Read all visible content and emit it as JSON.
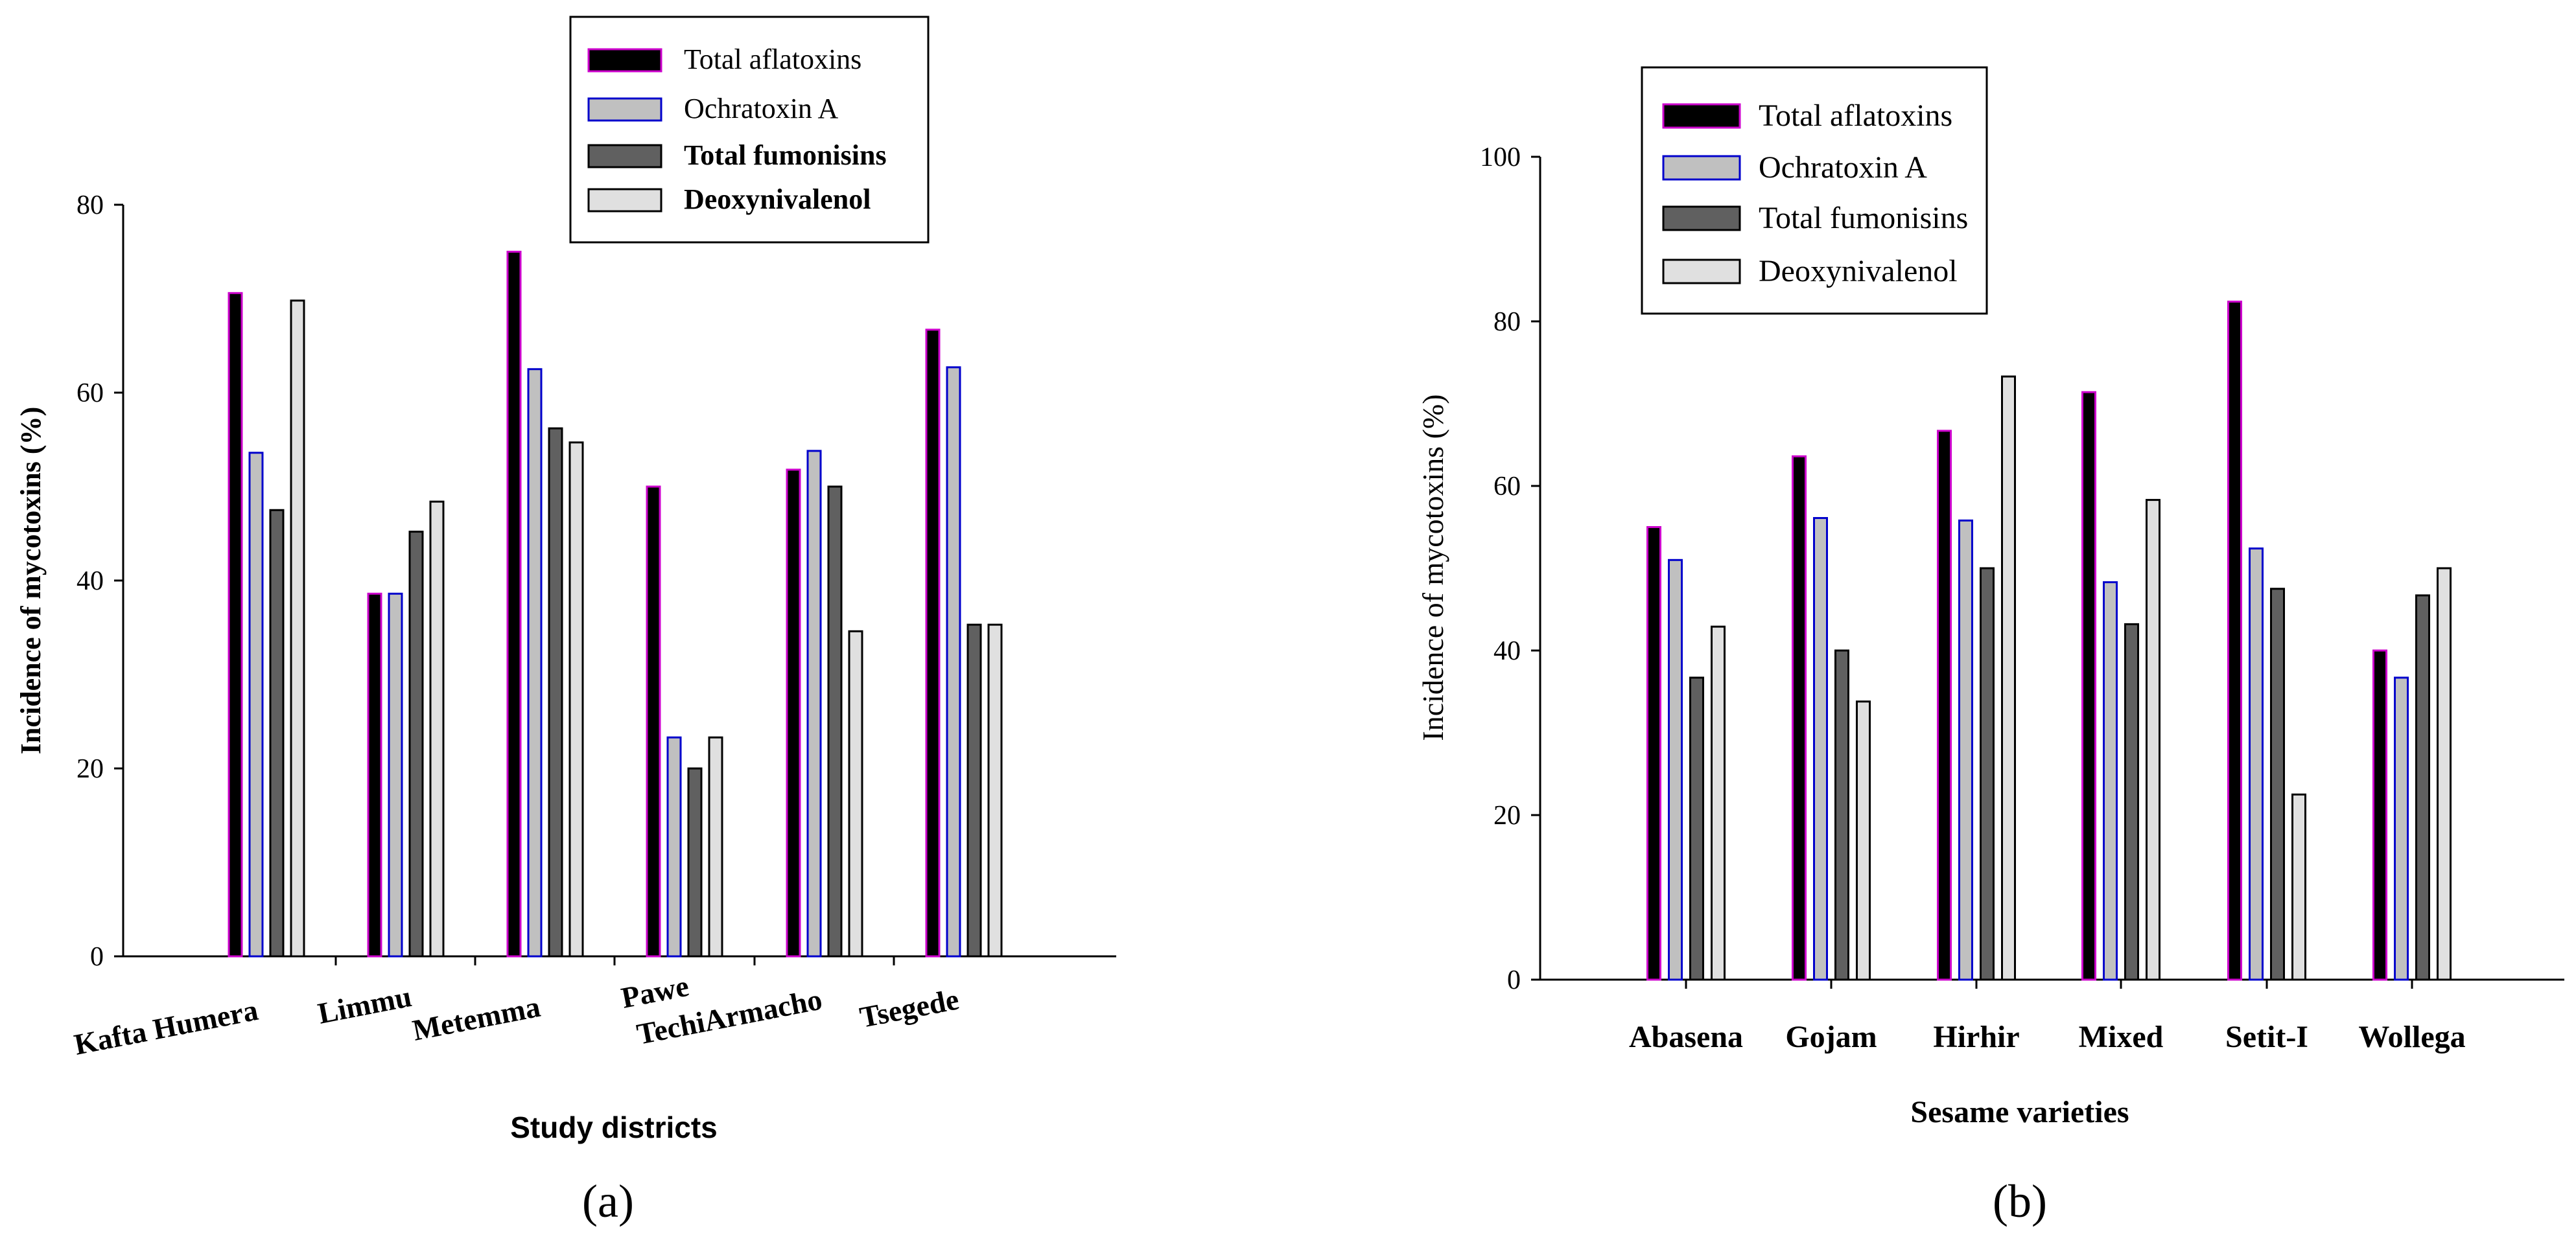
{
  "chart_data": [
    {
      "panel": "(a)",
      "type": "bar",
      "title": "",
      "xlabel": "Study districts",
      "ylabel": "Incidence of mycotoxins (%)",
      "ylim": [
        0,
        80
      ],
      "yticks": [
        0,
        20,
        40,
        60,
        80
      ],
      "grid": false,
      "legend_position": "top",
      "categories": [
        "Kafta Humera",
        "Limmu",
        "Metemma",
        "Pawe",
        "TechiArmacho",
        "Tsegede"
      ],
      "series": [
        {
          "name": "Total aflatoxins",
          "fill": "#000000",
          "stroke": "#cc00cc",
          "values": [
            70.6,
            38.6,
            75.0,
            50.0,
            51.8,
            66.7
          ]
        },
        {
          "name": "Ochratoxin A",
          "fill": "#c0c0c0",
          "stroke": "#0000cc",
          "values": [
            53.6,
            38.6,
            62.5,
            23.3,
            53.8,
            62.7
          ]
        },
        {
          "name": "Total fumonisins",
          "fill": "#606060",
          "stroke": "#000000",
          "values": [
            47.5,
            45.2,
            56.2,
            20.0,
            50.0,
            35.3
          ]
        },
        {
          "name": "Deoxynivalenol",
          "fill": "#e0e0e0",
          "stroke": "#000000",
          "values": [
            69.8,
            48.4,
            54.7,
            23.3,
            34.6,
            35.3
          ]
        }
      ]
    },
    {
      "panel": "(b)",
      "type": "bar",
      "title": "",
      "xlabel": "Sesame varieties",
      "ylabel": "Incidence of mycotoxins  (%)",
      "ylim": [
        0,
        100
      ],
      "yticks": [
        0,
        20,
        40,
        60,
        80,
        100
      ],
      "grid": false,
      "legend_position": "top-left",
      "categories": [
        "Abasena",
        "Gojam",
        "Hirhir",
        "Mixed",
        "Setit-I",
        "Wollega"
      ],
      "series": [
        {
          "name": "Total aflatoxins",
          "fill": "#000000",
          "stroke": "#cc00cc",
          "values": [
            55.0,
            63.6,
            66.7,
            71.4,
            82.4,
            40.0
          ]
        },
        {
          "name": "Ochratoxin A",
          "fill": "#c0c0c0",
          "stroke": "#0000cc",
          "values": [
            51.0,
            56.1,
            55.8,
            48.3,
            52.4,
            36.7
          ]
        },
        {
          "name": "Total fumonisins",
          "fill": "#606060",
          "stroke": "#000000",
          "values": [
            36.7,
            40.0,
            50.0,
            43.2,
            47.5,
            46.7
          ]
        },
        {
          "name": "Deoxynivalenol",
          "fill": "#e0e0e0",
          "stroke": "#000000",
          "values": [
            42.9,
            33.8,
            73.3,
            58.3,
            22.5,
            50.0
          ]
        }
      ]
    }
  ]
}
